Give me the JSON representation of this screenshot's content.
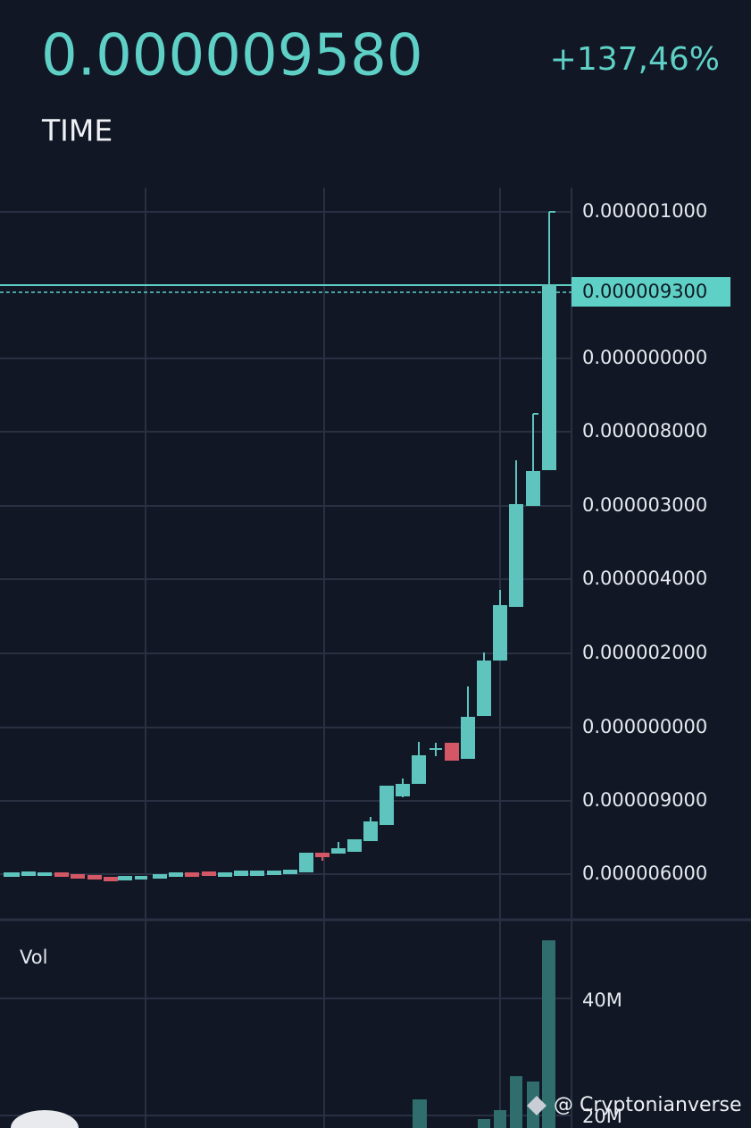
{
  "header": {
    "price": "0.000009580",
    "change": "+137,46%",
    "time_label": "TIME"
  },
  "chart": {
    "price_axis_labels": [
      "0.000001000",
      "0.000000000",
      "0.000008000",
      "0.000003000",
      "0.000004000",
      "0.000002000",
      "0.000000000",
      "0.000009000",
      "0.000006000"
    ],
    "current_price_label": "0.000009300"
  },
  "volume": {
    "label": "Vol",
    "axis_labels": [
      "40M",
      "20M"
    ]
  },
  "watermark": "@ Cryptonianverse"
}
